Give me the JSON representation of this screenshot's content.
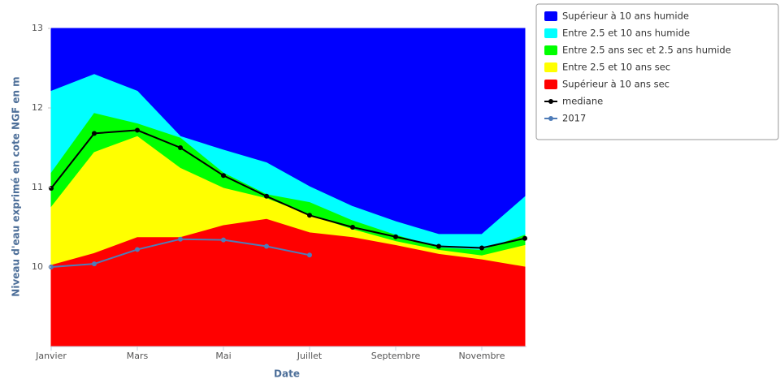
{
  "chart_data": {
    "type": "area",
    "y_label": "Niveau d'eau exprimé en cote NGF en m",
    "x_label": "Date",
    "categories": [
      "Janvier",
      null,
      "Mars",
      null,
      "Mai",
      null,
      "Juillet",
      null,
      "Septembre",
      null,
      "Novembre",
      null
    ],
    "ylim": [
      9,
      13
    ],
    "yticks": [
      10,
      11,
      12,
      13
    ],
    "series": [
      {
        "name": "Supérieur à 10 ans humide",
        "color": "#0000ff",
        "kind": "area",
        "values": [
          13,
          13,
          13,
          13,
          13,
          13,
          13,
          13,
          13,
          13,
          13,
          13
        ]
      },
      {
        "name": "Entre 2.5 et 10 ans humide",
        "color": "#00ffff",
        "kind": "area",
        "values": [
          12.21,
          12.42,
          12.21,
          11.64,
          11.47,
          11.31,
          11.01,
          10.76,
          10.57,
          10.41,
          10.41,
          10.88
        ]
      },
      {
        "name": "Entre 2.5 ans sec et 2.5 ans humide",
        "color": "#00ff00",
        "kind": "area",
        "values": [
          11.18,
          11.93,
          11.8,
          11.62,
          11.18,
          10.91,
          10.81,
          10.58,
          10.4,
          10.24,
          10.21,
          10.4
        ]
      },
      {
        "name": "Entre 2.5 et 10 ans sec",
        "color": "#ffff00",
        "kind": "area",
        "values": [
          10.75,
          11.44,
          11.64,
          11.24,
          10.99,
          10.86,
          10.65,
          10.47,
          10.32,
          10.21,
          10.14,
          10.27
        ]
      },
      {
        "name": "Supérieur à 10 ans sec",
        "color": "#ff0000",
        "kind": "area",
        "values": [
          10.02,
          10.17,
          10.37,
          10.37,
          10.52,
          10.6,
          10.43,
          10.37,
          10.27,
          10.16,
          10.09,
          10.0
        ]
      },
      {
        "name": "mediane",
        "color": "#000000",
        "kind": "line",
        "values": [
          10.99,
          11.68,
          11.72,
          11.5,
          11.15,
          10.89,
          10.65,
          10.5,
          10.38,
          10.26,
          10.24,
          10.36
        ]
      },
      {
        "name": "2017",
        "color": "#4f7cb8",
        "kind": "line",
        "values": [
          10.0,
          10.04,
          10.22,
          10.35,
          10.34,
          10.26,
          10.15,
          null,
          null,
          null,
          null,
          null
        ]
      }
    ]
  }
}
